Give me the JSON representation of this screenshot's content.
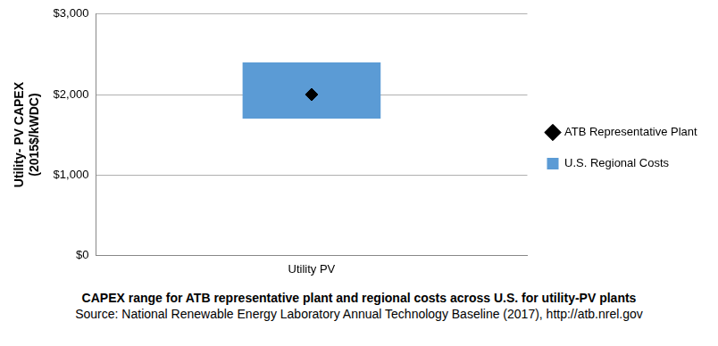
{
  "chart_data": {
    "type": "bar",
    "title": "CAPEX range for ATB representative plant and regional costs across U.S. for utility-PV plants",
    "subtitle": "Source: National Renewable Energy Laboratory Annual Technology Baseline (2017), http://atb.nrel.gov",
    "y_label": [
      "Utility- PV CAPEX",
      "(2015$/kWDC)"
    ],
    "categories": [
      "Utility PV"
    ],
    "series": [
      {
        "name": "ATB Representative Plant",
        "type": "scatter",
        "marker": "diamond",
        "color": "#000000",
        "values": [
          2000
        ]
      },
      {
        "name": "U.S. Regional Costs",
        "type": "bar",
        "color": "#5b9bd5",
        "values": [
          [
            1700,
            2400
          ]
        ]
      }
    ],
    "ylim": [
      0,
      3000
    ],
    "yticks": [
      {
        "value": 0,
        "label": "$0"
      },
      {
        "value": 1000,
        "label": "$1,000"
      },
      {
        "value": 2000,
        "label": "$2,000"
      },
      {
        "value": 3000,
        "label": "$3,000"
      }
    ],
    "grid": true,
    "legend": "right"
  }
}
